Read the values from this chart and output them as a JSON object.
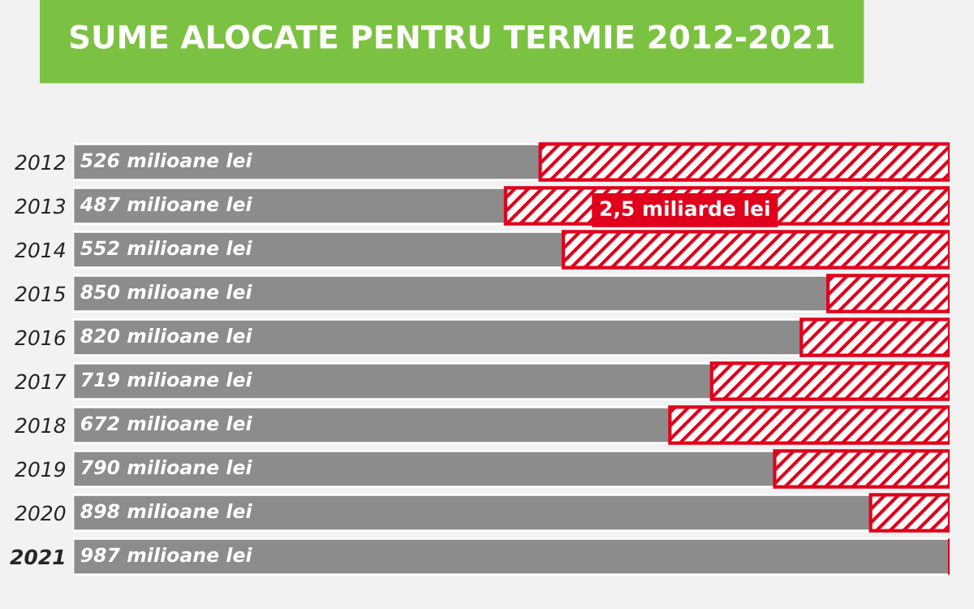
{
  "chart_data": {
    "type": "bar",
    "orientation": "horizontal",
    "stacked": true,
    "title": "SUME ALOCATE PENTRU TERMIE 2012-2021",
    "categories": [
      "2012",
      "2013",
      "2014",
      "2015",
      "2016",
      "2017",
      "2018",
      "2019",
      "2020",
      "2021"
    ],
    "series": [
      {
        "color": "#8c8c8c",
        "values": [
          526,
          487,
          552,
          850,
          820,
          719,
          672,
          790,
          898,
          987
        ],
        "value_labels": [
          "526 milioane lei",
          "487 milioane lei",
          "552 milioane lei",
          "850 milioane lei",
          "820 milioane lei",
          "719 milioane lei",
          "672 milioane lei",
          "790 milioane lei",
          "898 milioane lei",
          "987 milioane lei"
        ]
      },
      {
        "color": "#e0001b",
        "values": [
          461,
          500,
          435,
          137,
          167,
          268,
          315,
          197,
          89,
          0
        ]
      }
    ],
    "tick_labels": "y",
    "grid": false,
    "legend": false,
    "annotations": [
      "2,5 miliarde lei"
    ]
  }
}
